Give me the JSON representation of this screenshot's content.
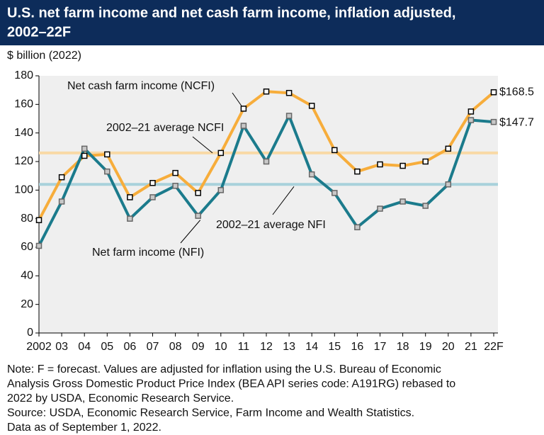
{
  "chart_data": {
    "type": "line",
    "title": [
      "U.S. net farm income and net cash farm income, inflation adjusted,",
      "2002–22F"
    ],
    "y_label": "$ billion (2022)",
    "categories": [
      "2002",
      "03",
      "04",
      "05",
      "06",
      "07",
      "08",
      "09",
      "10",
      "11",
      "12",
      "13",
      "14",
      "15",
      "16",
      "17",
      "18",
      "19",
      "20",
      "21",
      "22F"
    ],
    "series": [
      {
        "name": "Net cash farm income (NCFI)",
        "color": "#f7ad3b",
        "marker_fill": "#ffffff",
        "values": [
          79,
          109,
          124,
          125,
          95,
          105,
          112,
          98,
          126,
          157,
          169,
          168,
          159,
          128,
          113,
          118,
          117,
          120,
          129,
          155,
          168.5
        ],
        "value_labels": [
          null,
          null,
          null,
          null,
          null,
          null,
          null,
          null,
          null,
          null,
          null,
          null,
          null,
          null,
          null,
          null,
          null,
          null,
          null,
          null,
          "$168.5"
        ]
      },
      {
        "name": "Net farm income (NFI)",
        "color": "#1b7b8c",
        "marker_fill": "#c8c8c8",
        "values": [
          61,
          92,
          129,
          113,
          80,
          95,
          103,
          82,
          100,
          145,
          120,
          152,
          111,
          98,
          74,
          87,
          92,
          89,
          104,
          149,
          147.7
        ],
        "value_labels": [
          null,
          null,
          null,
          null,
          null,
          null,
          null,
          null,
          null,
          null,
          null,
          null,
          null,
          null,
          null,
          null,
          null,
          null,
          null,
          null,
          "$147.7"
        ]
      }
    ],
    "reference_lines": [
      {
        "name": "2002–21 average NCFI",
        "value": 126,
        "color": "#f9d9a6"
      },
      {
        "name": "2002–21 average NFI",
        "value": 104,
        "color": "#a8d1db"
      }
    ],
    "ylim": [
      0,
      180
    ],
    "yticks": [
      0,
      20,
      40,
      60,
      80,
      100,
      120,
      140,
      160,
      180
    ],
    "grid": false,
    "notes": [
      "Note: F = forecast. Values are adjusted for inflation using the U.S. Bureau of Economic",
      "Analysis Gross Domestic Product Price Index (BEA API series code: A191RG) rebased to",
      "2022 by USDA, Economic Research Service.",
      "Source: USDA, Economic Research Service, Farm Income and Wealth Statistics.",
      "Data as of September 1, 2022."
    ]
  }
}
